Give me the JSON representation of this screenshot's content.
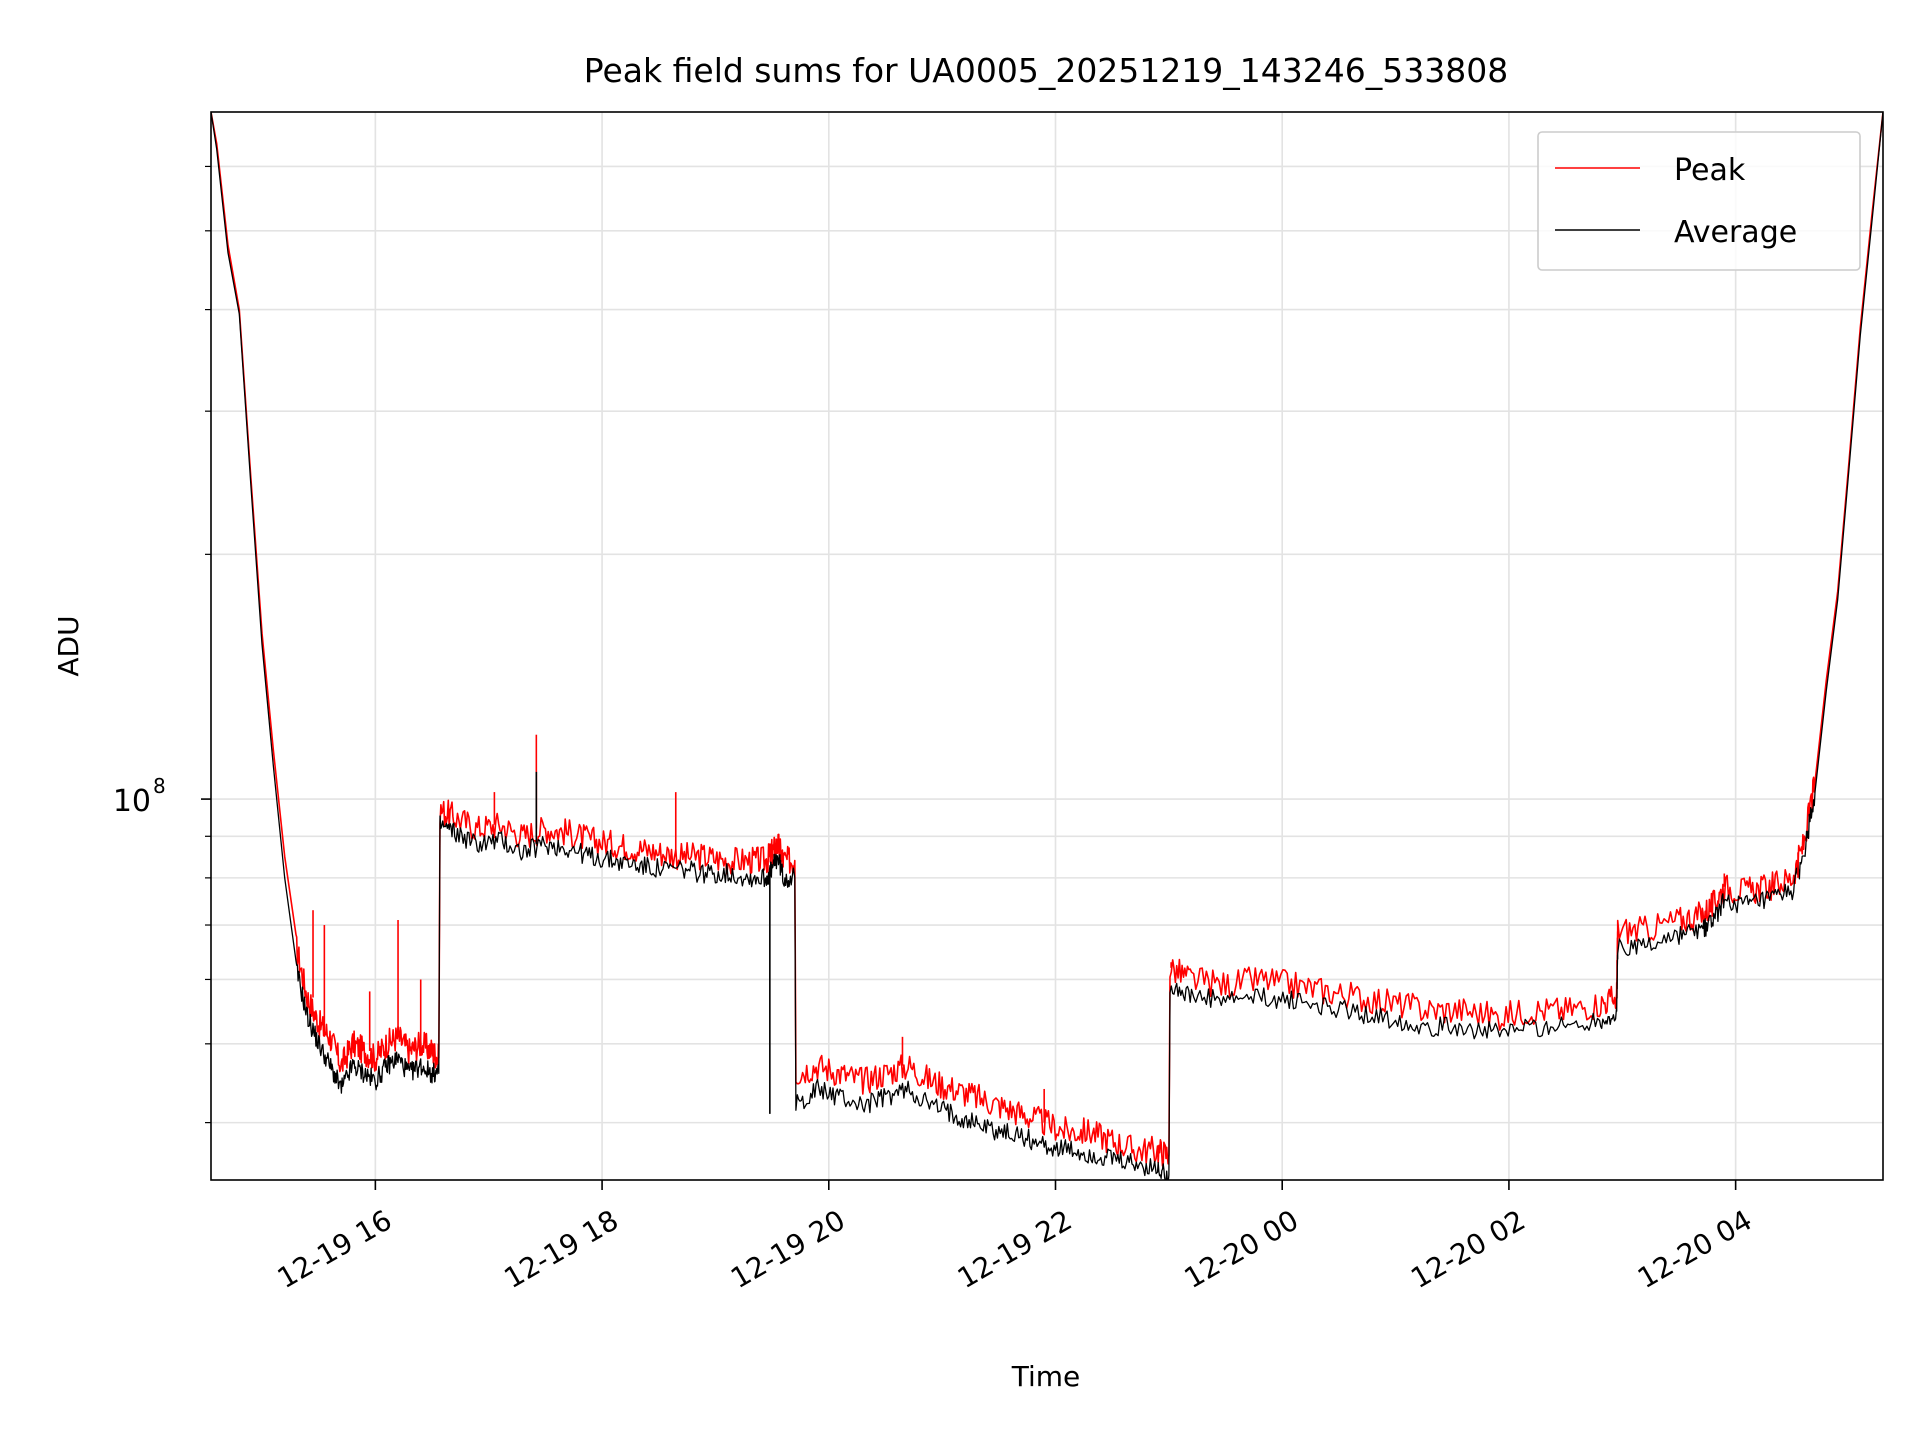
{
  "chart_data": {
    "type": "line",
    "title": "Peak field sums for UA0005_20251219_143246_533808",
    "xlabel": "Time",
    "ylabel": "ADU",
    "yscale": "log",
    "ylim": [
      34000000,
      700000000
    ],
    "xlim": [
      14.55,
      29.3
    ],
    "grid": true,
    "legend_position": "top-right",
    "x_ticks": [
      {
        "value": 16,
        "label": "12-19 16"
      },
      {
        "value": 18,
        "label": "12-19 18"
      },
      {
        "value": 20,
        "label": "12-19 20"
      },
      {
        "value": 22,
        "label": "12-19 22"
      },
      {
        "value": 24,
        "label": "12-20 00"
      },
      {
        "value": 26,
        "label": "12-20 02"
      },
      {
        "value": 28,
        "label": "12-20 04"
      }
    ],
    "y_ticks": [
      {
        "value": 100000000,
        "base": "10",
        "exp": "8"
      }
    ],
    "y_minor_ticks": [
      40000000,
      50000000,
      60000000,
      70000000,
      80000000,
      90000000,
      200000000,
      300000000,
      400000000,
      500000000,
      600000000
    ],
    "series": [
      {
        "name": "Peak",
        "color": "#ff0000",
        "points": [
          [
            14.55,
            700000000
          ],
          [
            14.6,
            640000000
          ],
          [
            14.7,
            480000000
          ],
          [
            14.8,
            400000000
          ],
          [
            14.9,
            250000000
          ],
          [
            15.0,
            160000000
          ],
          [
            15.1,
            115000000
          ],
          [
            15.2,
            85000000
          ],
          [
            15.3,
            66000000
          ],
          [
            15.4,
            57000000
          ],
          [
            15.5,
            53000000
          ],
          [
            15.6,
            51000000
          ],
          [
            15.7,
            47000000
          ],
          [
            15.8,
            50000000
          ],
          [
            15.9,
            49000000
          ],
          [
            16.0,
            48000000
          ],
          [
            16.1,
            50000000
          ],
          [
            16.2,
            51000000
          ],
          [
            16.3,
            49000000
          ],
          [
            16.4,
            50000000
          ],
          [
            16.5,
            49000000
          ],
          [
            16.56,
            48000000
          ],
          [
            16.57,
            97000000
          ],
          [
            16.7,
            95000000
          ],
          [
            16.9,
            92000000
          ],
          [
            17.1,
            93000000
          ],
          [
            17.3,
            90000000
          ],
          [
            17.5,
            92000000
          ],
          [
            17.7,
            91000000
          ],
          [
            17.9,
            89000000
          ],
          [
            18.1,
            88000000
          ],
          [
            18.3,
            87000000
          ],
          [
            18.5,
            86000000
          ],
          [
            18.7,
            85000000
          ],
          [
            18.9,
            85000000
          ],
          [
            19.1,
            84000000
          ],
          [
            19.3,
            84000000
          ],
          [
            19.45,
            84000000
          ],
          [
            19.5,
            86000000
          ],
          [
            19.55,
            88000000
          ],
          [
            19.6,
            84000000
          ],
          [
            19.7,
            84000000
          ],
          [
            19.71,
            46000000
          ],
          [
            19.9,
            47000000
          ],
          [
            20.1,
            46000000
          ],
          [
            20.3,
            45000000
          ],
          [
            20.5,
            46000000
          ],
          [
            20.7,
            47000000
          ],
          [
            20.9,
            45000000
          ],
          [
            21.1,
            44000000
          ],
          [
            21.3,
            43000000
          ],
          [
            21.5,
            42000000
          ],
          [
            21.7,
            41000000
          ],
          [
            21.9,
            40000000
          ],
          [
            22.1,
            39000000
          ],
          [
            22.3,
            39000000
          ],
          [
            22.5,
            38000000
          ],
          [
            22.7,
            37000000
          ],
          [
            22.9,
            37000000
          ],
          [
            23.0,
            36500000
          ],
          [
            23.01,
            62000000
          ],
          [
            23.2,
            60000000
          ],
          [
            23.5,
            59000000
          ],
          [
            23.8,
            60000000
          ],
          [
            24.1,
            59000000
          ],
          [
            24.4,
            58000000
          ],
          [
            24.7,
            57000000
          ],
          [
            25.0,
            56000000
          ],
          [
            25.3,
            55000000
          ],
          [
            25.6,
            55000000
          ],
          [
            25.9,
            54000000
          ],
          [
            26.2,
            55000000
          ],
          [
            26.5,
            55000000
          ],
          [
            26.8,
            56000000
          ],
          [
            26.95,
            57000000
          ],
          [
            26.96,
            69000000
          ],
          [
            27.2,
            69000000
          ],
          [
            27.5,
            71000000
          ],
          [
            27.7,
            72000000
          ],
          [
            27.8,
            74000000
          ],
          [
            27.9,
            78000000
          ],
          [
            28.1,
            77000000
          ],
          [
            28.3,
            78000000
          ],
          [
            28.5,
            80000000
          ],
          [
            28.6,
            88000000
          ],
          [
            28.7,
            105000000
          ],
          [
            28.8,
            140000000
          ],
          [
            28.9,
            180000000
          ],
          [
            29.0,
            260000000
          ],
          [
            29.1,
            380000000
          ],
          [
            29.2,
            520000000
          ],
          [
            29.3,
            700000000
          ]
        ]
      },
      {
        "name": "Average",
        "color": "#000000",
        "points": [
          [
            14.55,
            700000000
          ],
          [
            14.6,
            630000000
          ],
          [
            14.7,
            470000000
          ],
          [
            14.8,
            395000000
          ],
          [
            14.9,
            245000000
          ],
          [
            15.0,
            155000000
          ],
          [
            15.1,
            110000000
          ],
          [
            15.2,
            80000000
          ],
          [
            15.3,
            62000000
          ],
          [
            15.4,
            54000000
          ],
          [
            15.5,
            50000000
          ],
          [
            15.6,
            47000000
          ],
          [
            15.7,
            44000000
          ],
          [
            15.8,
            47000000
          ],
          [
            15.9,
            46000000
          ],
          [
            16.0,
            45000000
          ],
          [
            16.1,
            47000000
          ],
          [
            16.2,
            48000000
          ],
          [
            16.3,
            46000000
          ],
          [
            16.4,
            47000000
          ],
          [
            16.5,
            46000000
          ],
          [
            16.56,
            46000000
          ],
          [
            16.57,
            93000000
          ],
          [
            16.7,
            91000000
          ],
          [
            16.9,
            88000000
          ],
          [
            17.1,
            89000000
          ],
          [
            17.3,
            86000000
          ],
          [
            17.5,
            88000000
          ],
          [
            17.7,
            87000000
          ],
          [
            17.9,
            85000000
          ],
          [
            18.1,
            84000000
          ],
          [
            18.3,
            83000000
          ],
          [
            18.5,
            82000000
          ],
          [
            18.7,
            82000000
          ],
          [
            18.9,
            81000000
          ],
          [
            19.1,
            81000000
          ],
          [
            19.3,
            80000000
          ],
          [
            19.45,
            80000000
          ],
          [
            19.5,
            82000000
          ],
          [
            19.55,
            85000000
          ],
          [
            19.6,
            80000000
          ],
          [
            19.7,
            80000000
          ],
          [
            19.71,
            42000000
          ],
          [
            19.9,
            44000000
          ],
          [
            20.1,
            43000000
          ],
          [
            20.3,
            42000000
          ],
          [
            20.5,
            43000000
          ],
          [
            20.7,
            44000000
          ],
          [
            20.9,
            42000000
          ],
          [
            21.1,
            41000000
          ],
          [
            21.3,
            40000000
          ],
          [
            21.5,
            39000000
          ],
          [
            21.7,
            38500000
          ],
          [
            21.9,
            37500000
          ],
          [
            22.1,
            37000000
          ],
          [
            22.3,
            36500000
          ],
          [
            22.5,
            36000000
          ],
          [
            22.7,
            35500000
          ],
          [
            22.9,
            35000000
          ],
          [
            23.0,
            34500000
          ],
          [
            23.01,
            59000000
          ],
          [
            23.2,
            57000000
          ],
          [
            23.5,
            56500000
          ],
          [
            23.8,
            57000000
          ],
          [
            24.1,
            56500000
          ],
          [
            24.4,
            55500000
          ],
          [
            24.7,
            54500000
          ],
          [
            25.0,
            53500000
          ],
          [
            25.3,
            52500000
          ],
          [
            25.6,
            52500000
          ],
          [
            25.9,
            51500000
          ],
          [
            26.2,
            52500000
          ],
          [
            26.5,
            52500000
          ],
          [
            26.8,
            53500000
          ],
          [
            26.95,
            54000000
          ],
          [
            26.96,
            66000000
          ],
          [
            27.2,
            66000000
          ],
          [
            27.5,
            68000000
          ],
          [
            27.7,
            69000000
          ],
          [
            27.8,
            71000000
          ],
          [
            27.9,
            75000000
          ],
          [
            28.1,
            74000000
          ],
          [
            28.3,
            75000000
          ],
          [
            28.5,
            77000000
          ],
          [
            28.6,
            85000000
          ],
          [
            28.7,
            102000000
          ],
          [
            28.8,
            136000000
          ],
          [
            28.9,
            176000000
          ],
          [
            29.0,
            255000000
          ],
          [
            29.1,
            372000000
          ],
          [
            29.2,
            510000000
          ],
          [
            29.3,
            700000000
          ]
        ]
      }
    ],
    "spikes": [
      {
        "series": "Peak",
        "x": 15.45,
        "y": 73000000
      },
      {
        "series": "Peak",
        "x": 15.55,
        "y": 70000000
      },
      {
        "series": "Peak",
        "x": 15.95,
        "y": 58000000
      },
      {
        "series": "Peak",
        "x": 16.2,
        "y": 71000000
      },
      {
        "series": "Peak",
        "x": 16.4,
        "y": 60000000
      },
      {
        "series": "Peak",
        "x": 17.05,
        "y": 102000000
      },
      {
        "series": "Peak",
        "x": 17.42,
        "y": 120000000
      },
      {
        "series": "Average",
        "x": 17.42,
        "y": 108000000
      },
      {
        "series": "Peak",
        "x": 18.65,
        "y": 102000000
      },
      {
        "series": "Average",
        "x": 19.48,
        "y": 41000000
      },
      {
        "series": "Peak",
        "x": 20.65,
        "y": 51000000
      },
      {
        "series": "Peak",
        "x": 21.9,
        "y": 44000000
      },
      {
        "series": "Peak",
        "x": 23.02,
        "y": 63000000
      },
      {
        "series": "Peak",
        "x": 27.9,
        "y": 81000000
      },
      {
        "series": "Peak",
        "x": 28.55,
        "y": 86000000
      }
    ]
  }
}
